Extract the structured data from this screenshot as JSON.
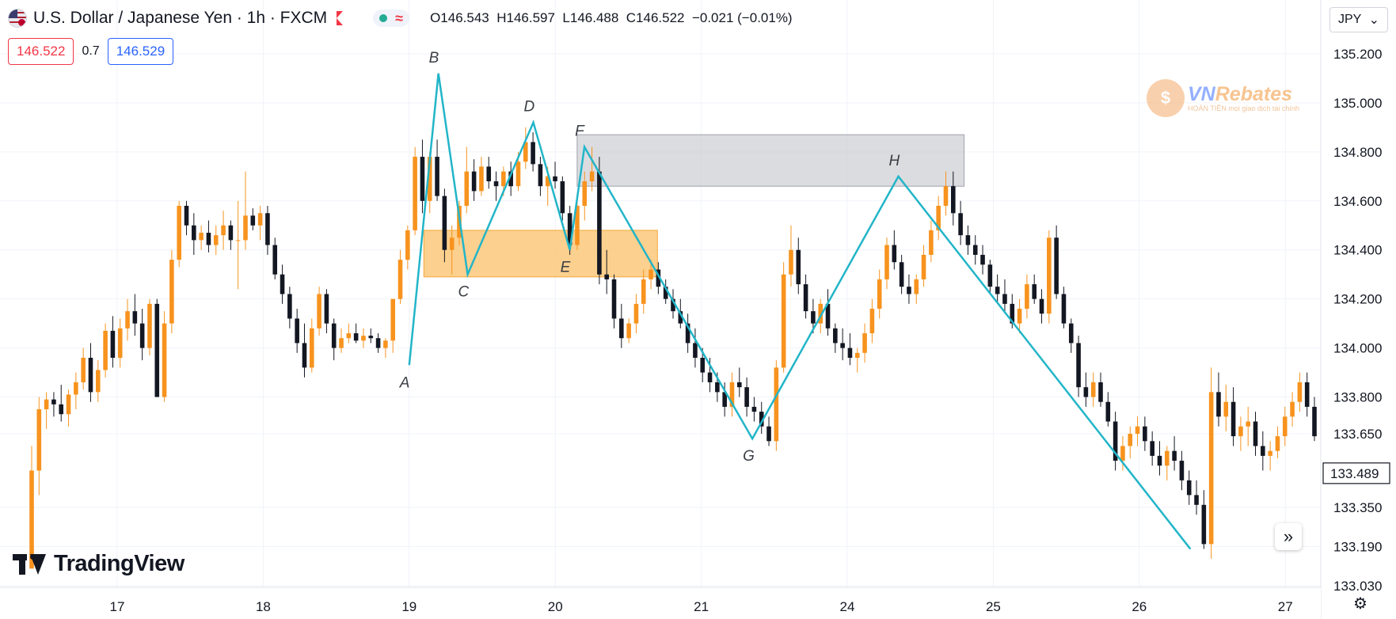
{
  "header": {
    "title": "U.S. Dollar / Japanese Yen · 1h · FXCM",
    "ohlc": {
      "o_label": "O",
      "o": "146.543",
      "h_label": "H",
      "h": "146.597",
      "l_label": "L",
      "l": "146.488",
      "c_label": "C",
      "c": "146.522",
      "change": "−0.021 (−0.01%)"
    }
  },
  "trade": {
    "sell_price": "146.522",
    "spread": "0.7",
    "buy_price": "146.529"
  },
  "currency": {
    "label": "JPY"
  },
  "logo": {
    "text": "TradingView"
  },
  "watermark": {
    "brand_a": "VN",
    "brand_b": "Rebates",
    "tagline": "HOÀN TIỀN mọi giao dịch tài chính"
  },
  "colors": {
    "up": "#f7931e",
    "down": "#131722",
    "pattern": "#22b5c8",
    "orange_zone": "#fbc87a",
    "gray_zone": "#c8cad0"
  },
  "chart_data": {
    "type": "candlestick",
    "symbol": "USDJPY",
    "timeframe": "1h",
    "x_ticks": [
      "17",
      "18",
      "19",
      "20",
      "21",
      "24",
      "25",
      "26",
      "27"
    ],
    "y_ticks": [
      "135.200",
      "135.000",
      "134.800",
      "134.600",
      "134.400",
      "134.200",
      "134.000",
      "133.800",
      "133.650",
      "133.350",
      "133.190",
      "133.030"
    ],
    "y_range": [
      133.03,
      135.2
    ],
    "last_price": "133.489",
    "pattern_points": [
      {
        "label": "A",
        "x": 19.0,
        "y": 133.93
      },
      {
        "label": "B",
        "x": 19.2,
        "y": 135.12
      },
      {
        "label": "C",
        "x": 19.4,
        "y": 134.3
      },
      {
        "label": "D",
        "x": 19.85,
        "y": 134.92
      },
      {
        "label": "E",
        "x": 20.1,
        "y": 134.4
      },
      {
        "label": "F",
        "x": 20.2,
        "y": 134.82
      },
      {
        "label": "G",
        "x": 21.35,
        "y": 133.63
      },
      {
        "label": "H",
        "x": 24.35,
        "y": 134.7
      },
      {
        "label": "",
        "x": 26.35,
        "y": 133.18
      }
    ],
    "zones": [
      {
        "type": "demand",
        "x0": 19.1,
        "x1": 20.7,
        "y0": 134.29,
        "y1": 134.48
      },
      {
        "type": "supply",
        "x0": 20.15,
        "x1": 24.8,
        "y0": 134.66,
        "y1": 134.87
      }
    ],
    "candles": [
      [
        133.1,
        133.6,
        133.1,
        133.5
      ],
      [
        133.5,
        133.8,
        133.4,
        133.75
      ],
      [
        133.75,
        133.82,
        133.67,
        133.79
      ],
      [
        133.79,
        133.82,
        133.72,
        133.77
      ],
      [
        133.77,
        133.85,
        133.7,
        133.73
      ],
      [
        133.73,
        133.83,
        133.68,
        133.81
      ],
      [
        133.81,
        133.9,
        133.75,
        133.86
      ],
      [
        133.86,
        134.0,
        133.83,
        133.96
      ],
      [
        133.96,
        134.02,
        133.78,
        133.82
      ],
      [
        133.82,
        133.95,
        133.78,
        133.91
      ],
      [
        133.91,
        134.1,
        133.88,
        134.07
      ],
      [
        134.07,
        134.13,
        133.92,
        133.96
      ],
      [
        133.96,
        134.12,
        133.92,
        134.08
      ],
      [
        134.08,
        134.2,
        134.03,
        134.15
      ],
      [
        134.15,
        134.22,
        134.05,
        134.1
      ],
      [
        134.1,
        134.16,
        133.95,
        134.0
      ],
      [
        134.0,
        134.2,
        133.97,
        134.18
      ],
      [
        134.18,
        134.2,
        133.8,
        133.8
      ],
      [
        133.8,
        134.15,
        133.78,
        134.1
      ],
      [
        134.1,
        134.4,
        134.06,
        134.36
      ],
      [
        134.36,
        134.6,
        134.33,
        134.58
      ],
      [
        134.58,
        134.6,
        134.46,
        134.5
      ],
      [
        134.5,
        134.55,
        134.38,
        134.44
      ],
      [
        134.44,
        134.5,
        134.4,
        134.47
      ],
      [
        134.47,
        134.52,
        134.39,
        134.42
      ],
      [
        134.42,
        134.5,
        134.38,
        134.46
      ],
      [
        134.46,
        134.56,
        134.4,
        134.5
      ],
      [
        134.5,
        134.52,
        134.4,
        134.44
      ],
      [
        134.44,
        134.6,
        134.24,
        134.44
      ],
      [
        134.44,
        134.72,
        134.4,
        134.54
      ],
      [
        134.54,
        134.57,
        134.48,
        134.5
      ],
      [
        134.5,
        134.58,
        134.44,
        134.55
      ],
      [
        134.55,
        134.58,
        134.38,
        134.42
      ],
      [
        134.42,
        134.45,
        134.28,
        134.3
      ],
      [
        134.3,
        134.34,
        134.18,
        134.22
      ],
      [
        134.22,
        134.25,
        134.08,
        134.12
      ],
      [
        134.12,
        134.16,
        133.98,
        134.02
      ],
      [
        134.02,
        134.1,
        133.88,
        133.92
      ],
      [
        133.92,
        134.12,
        133.9,
        134.08
      ],
      [
        134.08,
        134.25,
        134.05,
        134.22
      ],
      [
        134.22,
        134.24,
        134.06,
        134.1
      ],
      [
        134.1,
        134.12,
        133.95,
        134.0
      ],
      [
        134.0,
        134.08,
        133.98,
        134.04
      ],
      [
        134.04,
        134.1,
        134.02,
        134.06
      ],
      [
        134.06,
        134.1,
        134.02,
        134.03
      ],
      [
        134.03,
        134.08,
        134.0,
        134.05
      ],
      [
        134.05,
        134.08,
        134.02,
        134.04
      ],
      [
        134.04,
        134.06,
        133.98,
        134.0
      ],
      [
        134.0,
        134.04,
        133.96,
        134.03
      ],
      [
        134.03,
        134.2,
        133.98,
        134.2
      ],
      [
        134.2,
        134.4,
        134.18,
        134.36
      ],
      [
        134.36,
        134.5,
        134.32,
        134.48
      ],
      [
        134.48,
        134.82,
        134.46,
        134.78
      ],
      [
        134.78,
        134.85,
        134.55,
        134.6
      ],
      [
        134.6,
        134.8,
        134.55,
        134.78
      ],
      [
        134.78,
        134.85,
        134.6,
        134.62
      ],
      [
        134.62,
        134.65,
        134.35,
        134.4
      ],
      [
        134.4,
        134.5,
        134.3,
        134.45
      ],
      [
        134.45,
        134.6,
        134.42,
        134.58
      ],
      [
        134.58,
        134.82,
        134.55,
        134.72
      ],
      [
        134.72,
        134.77,
        134.6,
        134.64
      ],
      [
        134.64,
        134.78,
        134.62,
        134.74
      ],
      [
        134.74,
        134.78,
        134.65,
        134.68
      ],
      [
        134.68,
        134.72,
        134.6,
        134.66
      ],
      [
        134.66,
        134.74,
        134.62,
        134.72
      ],
      [
        134.72,
        134.76,
        134.62,
        134.66
      ],
      [
        134.66,
        134.8,
        134.64,
        134.76
      ],
      [
        134.76,
        134.9,
        134.73,
        134.84
      ],
      [
        134.84,
        134.88,
        134.72,
        134.75
      ],
      [
        134.75,
        134.78,
        134.62,
        134.66
      ],
      [
        134.66,
        134.74,
        134.58,
        134.7
      ],
      [
        134.7,
        134.76,
        134.65,
        134.68
      ],
      [
        134.68,
        134.7,
        134.52,
        134.55
      ],
      [
        134.55,
        134.58,
        134.38,
        134.42
      ],
      [
        134.42,
        134.62,
        134.4,
        134.58
      ],
      [
        134.58,
        134.72,
        134.52,
        134.68
      ],
      [
        134.68,
        134.82,
        134.64,
        134.72
      ],
      [
        134.72,
        134.78,
        134.26,
        134.3
      ],
      [
        134.3,
        134.4,
        134.22,
        134.28
      ],
      [
        134.28,
        134.3,
        134.08,
        134.12
      ],
      [
        134.12,
        134.18,
        134.0,
        134.04
      ],
      [
        134.04,
        134.12,
        134.02,
        134.1
      ],
      [
        134.1,
        134.22,
        134.06,
        134.18
      ],
      [
        134.18,
        134.32,
        134.14,
        134.28
      ],
      [
        134.28,
        134.36,
        134.24,
        134.32
      ],
      [
        134.32,
        134.35,
        134.22,
        134.25
      ],
      [
        134.25,
        134.28,
        134.18,
        134.2
      ],
      [
        134.2,
        134.24,
        134.12,
        134.15
      ],
      [
        134.15,
        134.2,
        134.08,
        134.1
      ],
      [
        134.1,
        134.14,
        133.98,
        134.02
      ],
      [
        134.02,
        134.08,
        133.92,
        133.96
      ],
      [
        133.96,
        134.0,
        133.86,
        133.9
      ],
      [
        133.9,
        133.96,
        133.82,
        133.86
      ],
      [
        133.86,
        133.9,
        133.78,
        133.82
      ],
      [
        133.82,
        133.86,
        133.72,
        133.76
      ],
      [
        133.76,
        133.9,
        133.72,
        133.86
      ],
      [
        133.86,
        133.92,
        133.8,
        133.84
      ],
      [
        133.84,
        133.88,
        133.72,
        133.76
      ],
      [
        133.76,
        133.8,
        133.7,
        133.74
      ],
      [
        133.74,
        133.78,
        133.65,
        133.68
      ],
      [
        133.68,
        133.72,
        133.6,
        133.62
      ],
      [
        133.62,
        133.95,
        133.58,
        133.92
      ],
      [
        133.92,
        134.35,
        133.9,
        134.3
      ],
      [
        134.3,
        134.5,
        134.25,
        134.4
      ],
      [
        134.4,
        134.45,
        134.22,
        134.26
      ],
      [
        134.26,
        134.3,
        134.12,
        134.15
      ],
      [
        134.15,
        134.2,
        134.06,
        134.1
      ],
      [
        134.1,
        134.2,
        134.06,
        134.18
      ],
      [
        134.18,
        134.24,
        134.05,
        134.08
      ],
      [
        134.08,
        134.1,
        133.98,
        134.02
      ],
      [
        134.02,
        134.08,
        133.95,
        134.0
      ],
      [
        134.0,
        134.06,
        133.93,
        133.96
      ],
      [
        133.96,
        134.0,
        133.9,
        133.98
      ],
      [
        133.98,
        134.1,
        133.94,
        134.06
      ],
      [
        134.06,
        134.2,
        134.02,
        134.16
      ],
      [
        134.16,
        134.32,
        134.12,
        134.28
      ],
      [
        134.28,
        134.45,
        134.24,
        134.42
      ],
      [
        134.42,
        134.48,
        134.32,
        134.35
      ],
      [
        134.35,
        134.38,
        134.22,
        134.25
      ],
      [
        134.25,
        134.3,
        134.18,
        134.22
      ],
      [
        134.22,
        134.3,
        134.18,
        134.28
      ],
      [
        134.28,
        134.42,
        134.25,
        134.38
      ],
      [
        134.38,
        134.52,
        134.35,
        134.48
      ],
      [
        134.48,
        134.62,
        134.44,
        134.58
      ],
      [
        134.58,
        134.72,
        134.54,
        134.66
      ],
      [
        134.66,
        134.72,
        134.5,
        134.55
      ],
      [
        134.55,
        134.6,
        134.42,
        134.46
      ],
      [
        134.46,
        134.5,
        134.38,
        134.42
      ],
      [
        134.42,
        134.46,
        134.34,
        134.38
      ],
      [
        134.38,
        134.42,
        134.3,
        134.34
      ],
      [
        134.34,
        134.36,
        134.22,
        134.25
      ],
      [
        134.25,
        134.3,
        134.18,
        134.22
      ],
      [
        134.22,
        134.28,
        134.14,
        134.18
      ],
      [
        134.18,
        134.22,
        134.08,
        134.1
      ],
      [
        134.1,
        134.2,
        134.06,
        134.16
      ],
      [
        134.16,
        134.3,
        134.12,
        134.26
      ],
      [
        134.26,
        134.3,
        134.18,
        134.2
      ],
      [
        134.2,
        134.24,
        134.1,
        134.14
      ],
      [
        134.14,
        134.48,
        134.1,
        134.45
      ],
      [
        134.45,
        134.5,
        134.2,
        134.22
      ],
      [
        134.22,
        134.25,
        134.08,
        134.1
      ],
      [
        134.1,
        134.12,
        133.98,
        134.02
      ],
      [
        134.02,
        134.05,
        133.8,
        133.84
      ],
      [
        133.84,
        133.9,
        133.76,
        133.8
      ],
      [
        133.8,
        133.9,
        133.76,
        133.86
      ],
      [
        133.86,
        133.9,
        133.76,
        133.78
      ],
      [
        133.78,
        133.82,
        133.68,
        133.7
      ],
      [
        133.7,
        133.74,
        133.5,
        133.54
      ],
      [
        133.54,
        133.64,
        133.5,
        133.6
      ],
      [
        133.6,
        133.68,
        133.55,
        133.65
      ],
      [
        133.65,
        133.72,
        133.6,
        133.68
      ],
      [
        133.68,
        133.72,
        133.58,
        133.62
      ],
      [
        133.62,
        133.66,
        133.52,
        133.56
      ],
      [
        133.56,
        133.62,
        133.48,
        133.52
      ],
      [
        133.52,
        133.6,
        133.46,
        133.58
      ],
      [
        133.58,
        133.64,
        133.5,
        133.54
      ],
      [
        133.54,
        133.58,
        133.42,
        133.46
      ],
      [
        133.46,
        133.5,
        133.36,
        133.4
      ],
      [
        133.4,
        133.46,
        133.32,
        133.36
      ],
      [
        133.36,
        133.42,
        133.18,
        133.2
      ],
      [
        133.2,
        133.92,
        133.14,
        133.82
      ],
      [
        133.82,
        133.9,
        133.68,
        133.72
      ],
      [
        133.72,
        133.85,
        133.66,
        133.78
      ],
      [
        133.78,
        133.84,
        133.6,
        133.64
      ],
      [
        133.64,
        133.72,
        133.58,
        133.68
      ],
      [
        133.68,
        133.76,
        133.6,
        133.7
      ],
      [
        133.7,
        133.74,
        133.56,
        133.6
      ],
      [
        133.6,
        133.66,
        133.5,
        133.56
      ],
      [
        133.56,
        133.62,
        133.5,
        133.58
      ],
      [
        133.58,
        133.68,
        133.55,
        133.64
      ],
      [
        133.64,
        133.76,
        133.6,
        133.72
      ],
      [
        133.72,
        133.82,
        133.68,
        133.78
      ],
      [
        133.78,
        133.9,
        133.74,
        133.86
      ],
      [
        133.86,
        133.9,
        133.72,
        133.76
      ],
      [
        133.76,
        133.8,
        133.62,
        133.64
      ]
    ]
  }
}
